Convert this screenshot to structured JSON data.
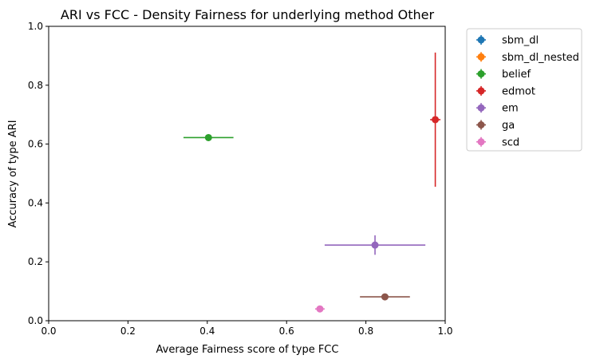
{
  "chart_data": {
    "type": "scatter",
    "title": "ARI vs FCC - Density Fairness for underlying method Other",
    "xlabel": "Average Fairness score of type FCC",
    "ylabel": "Accuracy of type ARI",
    "xlim": [
      0,
      1
    ],
    "ylim": [
      0,
      1
    ],
    "xticks": [
      "0.0",
      "0.2",
      "0.4",
      "0.6",
      "0.8",
      "1.0"
    ],
    "yticks": [
      "0.0",
      "0.2",
      "0.4",
      "0.6",
      "0.8",
      "1.0"
    ],
    "grid": false,
    "legend_position": "outside-right",
    "series": [
      {
        "name": "sbm_dl",
        "color": "#1f77b4",
        "points": []
      },
      {
        "name": "sbm_dl_nested",
        "color": "#ff7f0e",
        "points": []
      },
      {
        "name": "belief",
        "color": "#2ca02c",
        "points": [
          {
            "x": 0.403,
            "y": 0.622,
            "xerr": 0.063,
            "yerr": 0.008
          }
        ]
      },
      {
        "name": "edmot",
        "color": "#d62728",
        "points": [
          {
            "x": 0.975,
            "y": 0.683,
            "xerr": 0.013,
            "yerr": 0.228
          }
        ]
      },
      {
        "name": "em",
        "color": "#9467bd",
        "points": [
          {
            "x": 0.823,
            "y": 0.257,
            "xerr": 0.127,
            "yerr": 0.033
          }
        ]
      },
      {
        "name": "ga",
        "color": "#8c564b",
        "points": [
          {
            "x": 0.848,
            "y": 0.081,
            "xerr": 0.063,
            "yerr": 0.005
          }
        ]
      },
      {
        "name": "scd",
        "color": "#e377c2",
        "points": [
          {
            "x": 0.684,
            "y": 0.04,
            "xerr": 0.012,
            "yerr": 0.006
          }
        ]
      }
    ]
  }
}
